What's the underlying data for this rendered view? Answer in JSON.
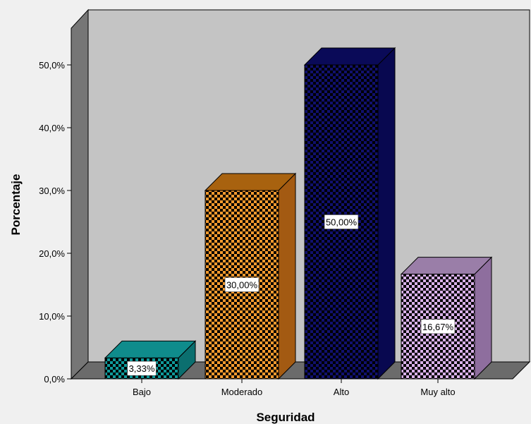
{
  "chart_data": {
    "type": "bar",
    "style": "3d",
    "xlabel": "Seguridad",
    "ylabel": "Porcentaje",
    "categories": [
      "Bajo",
      "Moderado",
      "Alto",
      "Muy alto"
    ],
    "values": [
      3.33,
      30.0,
      50.0,
      16.67
    ],
    "data_labels": [
      "3,33%",
      "30,00%",
      "50,00%",
      "16,67%"
    ],
    "ylim": [
      0,
      50
    ],
    "y_ticks": [
      0,
      10,
      20,
      30,
      40,
      50
    ],
    "y_tick_labels": [
      "0,0%",
      "10,0%",
      "20,0%",
      "30,0%",
      "40,0%",
      "50,0%"
    ],
    "grid": false,
    "legend": "none",
    "colors": [
      "#0f9a9a",
      "#f59a2e",
      "#10106e",
      "#d8b0e8"
    ],
    "colors_dark": [
      "#0b6f6f",
      "#a35a12",
      "#080850",
      "#8e6e9e"
    ],
    "colors_top": [
      "#0f8c8c",
      "#a8620f",
      "#0a0a58",
      "#9a7ea8"
    ],
    "wall_color": "#c4c4c4",
    "side_wall_color": "#767676",
    "floor_color": "#6b6b6b"
  }
}
